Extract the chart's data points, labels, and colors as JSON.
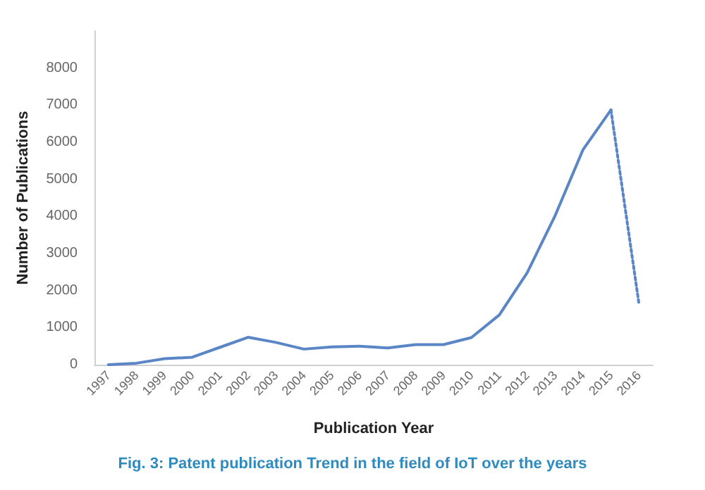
{
  "chart_data": {
    "type": "line",
    "title": "Fig. 3: Patent publication Trend in the field of IoT over the years",
    "xlabel": "Publication Year",
    "ylabel": "Number of Publications",
    "categories": [
      "1997",
      "1998",
      "1999",
      "2000",
      "2001",
      "2002",
      "2003",
      "2004",
      "2005",
      "2006",
      "2007",
      "2008",
      "2009",
      "2010",
      "2011",
      "2012",
      "2013",
      "2014",
      "2015",
      "2016"
    ],
    "series": [
      {
        "color": "#5b86c5",
        "line_style": "solid",
        "values": [
          0,
          40,
          160,
          200,
          470,
          740,
          600,
          420,
          480,
          500,
          450,
          540,
          540,
          730,
          1340,
          2480,
          4020,
          5800,
          6870,
          null
        ]
      },
      {
        "color": "#5b86c5",
        "line_style": "dotted",
        "values": [
          null,
          null,
          null,
          null,
          null,
          null,
          null,
          null,
          null,
          null,
          null,
          null,
          null,
          null,
          null,
          null,
          null,
          null,
          6870,
          1660
        ]
      }
    ],
    "ylim": [
      0,
      9000
    ],
    "yticks": [
      0,
      1000,
      2000,
      3000,
      4000,
      5000,
      6000,
      7000,
      8000
    ],
    "grid": false,
    "marker": "none"
  }
}
